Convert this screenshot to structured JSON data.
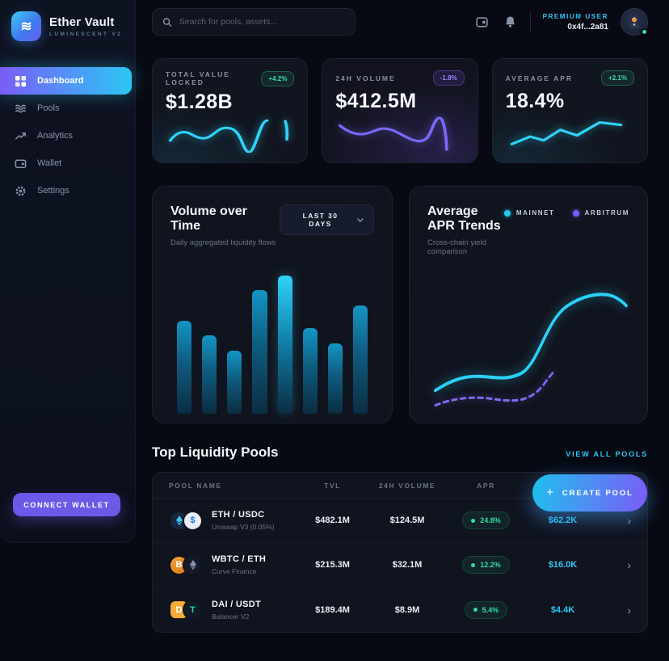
{
  "app": {
    "title": "Ether Vault",
    "subtitle": "LUMINESCENT V2"
  },
  "topbar": {
    "search_placeholder": "Search for pools, assets...",
    "user": {
      "tier": "PREMIUM USER",
      "address": "0x4f...2a81",
      "status": "online"
    }
  },
  "sidebar": {
    "items": [
      {
        "label": "Dashboard",
        "icon": "dashboard-grid-icon",
        "active": true
      },
      {
        "label": "Pools",
        "icon": "waves-icon",
        "active": false
      },
      {
        "label": "Analytics",
        "icon": "trend-icon",
        "active": false
      },
      {
        "label": "Wallet",
        "icon": "wallet-icon",
        "active": false
      },
      {
        "label": "Settings",
        "icon": "gear-icon",
        "active": false
      }
    ],
    "connect_wallet_label": "CONNECT WALLET"
  },
  "stats": [
    {
      "label": "TOTAL VALUE LOCKED",
      "value": "$1.28B",
      "change": "+4.2%",
      "direction": "up",
      "accent": "#2bc7f4"
    },
    {
      "label": "24H VOLUME",
      "value": "$412.5M",
      "change": "-1.8%",
      "direction": "down",
      "accent": "#7b5cf7"
    },
    {
      "label": "AVERAGE APR",
      "value": "18.4%",
      "change": "+2.1%",
      "direction": "up",
      "accent": "#2bc7f4"
    }
  ],
  "volume_card": {
    "title": "Volume over Time",
    "subtitle": "Daily aggregated liquidity flows",
    "range_label": "LAST 30 DAYS"
  },
  "apr_card": {
    "title": "Average APR Trends",
    "subtitle": "Cross-chain yield comparison",
    "legend": [
      {
        "label": "MAINNET",
        "color": "#2bc7f4"
      },
      {
        "label": "ARBITRUM",
        "color": "#7b5cf7"
      }
    ]
  },
  "chart_data": [
    {
      "id": "tvl-sparkline",
      "type": "line",
      "title": "TVL sparkline",
      "values_norm": [
        0.35,
        0.62,
        0.58,
        0.45,
        0.42,
        0.68,
        0.66,
        0.45,
        0.05,
        0.75,
        0.88,
        0.85
      ],
      "color": "#2bc7f4",
      "note": "decorative sparkline, no axes shown"
    },
    {
      "id": "volume-sparkline",
      "type": "line",
      "title": "24H volume sparkline",
      "values_norm": [
        0.68,
        0.55,
        0.45,
        0.58,
        0.58,
        0.42,
        0.32,
        0.28,
        0.4,
        0.88,
        0.05
      ],
      "color": "#7b5cf7",
      "note": "decorative sparkline, no axes shown"
    },
    {
      "id": "apr-sparkline",
      "type": "line",
      "title": "Average APR sparkline",
      "values_norm": [
        0.18,
        0.4,
        0.28,
        0.58,
        0.42,
        0.76,
        0.7
      ],
      "color": "#2bc7f4",
      "note": "decorative sparkline, no axes shown"
    },
    {
      "id": "volume-bars",
      "type": "bar",
      "title": "Volume over Time",
      "values_norm": [
        0.62,
        0.52,
        0.42,
        0.82,
        0.92,
        0.57,
        0.47,
        0.72
      ],
      "highlight_index": 4,
      "color_top": "#2bc7f4",
      "color_bottom": "#0c2c42",
      "note": "no axis tick labels shown"
    },
    {
      "id": "apr-lines",
      "type": "line",
      "title": "Average APR Trends",
      "series": [
        {
          "name": "MAINNET",
          "style": "solid",
          "color": "#2bc7f4",
          "values_norm": [
            0.3,
            0.36,
            0.38,
            0.37,
            0.36,
            0.42,
            0.62,
            0.78,
            0.84,
            0.8
          ]
        },
        {
          "name": "ARBITRUM",
          "style": "dashed",
          "color": "#7b5cf7",
          "values_norm": [
            0.2,
            0.25,
            0.27,
            0.26,
            0.25,
            0.27,
            0.35,
            0.48
          ]
        }
      ],
      "legend_position": "top-right",
      "grid": false,
      "note": "no axis tick labels shown"
    }
  ],
  "pools": {
    "heading": "Top Liquidity Pools",
    "view_all_label": "VIEW ALL POOLS",
    "create_pool_label": "CREATE POOL",
    "columns": [
      "POOL NAME",
      "TVL",
      "24H VOLUME",
      "APR"
    ],
    "rows": [
      {
        "name": "ETH / USDC",
        "platform": "Uniswap V3 (0.05%)",
        "tvl": "$482.1M",
        "volume": "$124.5M",
        "apr": "24.8%",
        "fees": "$62.2K",
        "tokens": [
          "ETH",
          "USDC"
        ]
      },
      {
        "name": "WBTC / ETH",
        "platform": "Curve Finance",
        "tvl": "$215.3M",
        "volume": "$32.1M",
        "apr": "12.2%",
        "fees": "$16.0K",
        "tokens": [
          "WBTC",
          "ETH"
        ]
      },
      {
        "name": "DAI / USDT",
        "platform": "Balancer V2",
        "tvl": "$189.4M",
        "volume": "$8.9M",
        "apr": "5.4%",
        "fees": "$4.4K",
        "tokens": [
          "DAI",
          "USDT"
        ]
      }
    ]
  },
  "colors": {
    "accent_cyan": "#2bc7f4",
    "accent_purple": "#7b5cf7",
    "positive_green": "#2fe0a2",
    "page_bg": "#070a12",
    "card_bg": "#11151f"
  }
}
